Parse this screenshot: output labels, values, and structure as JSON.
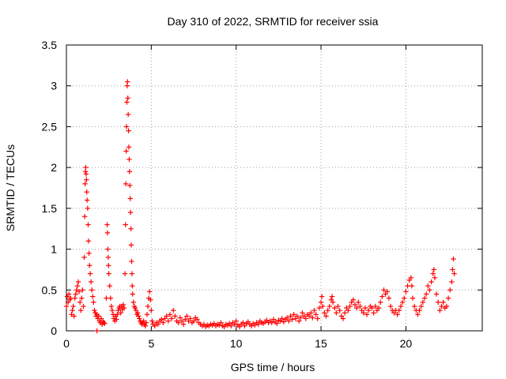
{
  "chart_data": {
    "type": "scatter",
    "title": "Day 310 of 2022, SRMTID for receiver ssia",
    "xlabel": "GPS time / hours",
    "ylabel": "SRMTID / TECUs",
    "xlim": [
      0,
      24.5
    ],
    "ylim": [
      0,
      3.5
    ],
    "x_ticks": [
      0,
      5,
      10,
      15,
      20
    ],
    "x_tick_labels": [
      "0",
      "5",
      "10",
      "15",
      "20"
    ],
    "y_ticks": [
      0,
      0.5,
      1,
      1.5,
      2,
      2.5,
      3,
      3.5
    ],
    "y_tick_labels": [
      "0",
      "0.5",
      "1",
      "1.5",
      "2",
      "2.5",
      "3",
      "3.5"
    ],
    "grid": true,
    "marker": "+",
    "series": [
      {
        "name": "SRMTID",
        "color": "#ff0000",
        "points": [
          [
            0.0,
            0.3
          ],
          [
            0.05,
            0.42
          ],
          [
            0.1,
            0.35
          ],
          [
            0.15,
            0.45
          ],
          [
            0.2,
            0.38
          ],
          [
            0.25,
            0.4
          ],
          [
            0.3,
            0.2
          ],
          [
            0.35,
            0.25
          ],
          [
            0.4,
            0.3
          ],
          [
            0.45,
            0.18
          ],
          [
            0.5,
            0.4
          ],
          [
            0.55,
            0.45
          ],
          [
            0.6,
            0.5
          ],
          [
            0.65,
            0.55
          ],
          [
            0.7,
            0.6
          ],
          [
            0.75,
            0.48
          ],
          [
            0.8,
            0.35
          ],
          [
            0.85,
            0.25
          ],
          [
            0.9,
            0.4
          ],
          [
            0.95,
            0.5
          ],
          [
            1.0,
            0.3
          ],
          [
            1.05,
            0.9
          ],
          [
            1.08,
            1.4
          ],
          [
            1.1,
            1.8
          ],
          [
            1.12,
            1.95
          ],
          [
            1.14,
            2.0
          ],
          [
            1.16,
            1.92
          ],
          [
            1.18,
            1.85
          ],
          [
            1.2,
            1.7
          ],
          [
            1.22,
            1.6
          ],
          [
            1.25,
            1.5
          ],
          [
            1.28,
            1.3
          ],
          [
            1.3,
            1.1
          ],
          [
            1.33,
            0.95
          ],
          [
            1.36,
            0.8
          ],
          [
            1.4,
            0.7
          ],
          [
            1.45,
            0.6
          ],
          [
            1.5,
            0.5
          ],
          [
            1.55,
            0.42
          ],
          [
            1.6,
            0.35
          ],
          [
            1.65,
            0.25
          ],
          [
            1.7,
            0.22
          ],
          [
            1.75,
            0.18
          ],
          [
            1.8,
            0.2
          ],
          [
            1.85,
            0.15
          ],
          [
            1.9,
            0.18
          ],
          [
            1.95,
            0.12
          ],
          [
            2.0,
            0.1
          ],
          [
            2.05,
            0.15
          ],
          [
            2.1,
            0.08
          ],
          [
            2.15,
            0.12
          ],
          [
            2.2,
            0.1
          ],
          [
            2.25,
            0.09
          ],
          [
            1.8,
            0.0
          ],
          [
            2.35,
            0.4
          ],
          [
            2.4,
            1.3
          ],
          [
            2.42,
            1.2
          ],
          [
            2.44,
            1.0
          ],
          [
            2.46,
            0.9
          ],
          [
            2.48,
            0.8
          ],
          [
            2.5,
            0.7
          ],
          [
            2.55,
            0.55
          ],
          [
            2.6,
            0.4
          ],
          [
            2.65,
            0.3
          ],
          [
            2.7,
            0.25
          ],
          [
            2.75,
            0.2
          ],
          [
            2.8,
            0.15
          ],
          [
            2.85,
            0.12
          ],
          [
            2.9,
            0.18
          ],
          [
            2.95,
            0.14
          ],
          [
            3.0,
            0.2
          ],
          [
            3.05,
            0.25
          ],
          [
            3.1,
            0.28
          ],
          [
            3.15,
            0.3
          ],
          [
            3.2,
            0.22
          ],
          [
            3.25,
            0.3
          ],
          [
            3.3,
            0.26
          ],
          [
            3.35,
            0.32
          ],
          [
            3.4,
            0.28
          ],
          [
            3.45,
            0.7
          ],
          [
            3.48,
            1.3
          ],
          [
            3.5,
            1.8
          ],
          [
            3.52,
            2.2
          ],
          [
            3.54,
            2.5
          ],
          [
            3.56,
            2.8
          ],
          [
            3.58,
            3.0
          ],
          [
            3.6,
            3.05
          ],
          [
            3.62,
            2.85
          ],
          [
            3.64,
            2.65
          ],
          [
            3.66,
            2.45
          ],
          [
            3.68,
            2.25
          ],
          [
            3.7,
            2.1
          ],
          [
            3.72,
            1.95
          ],
          [
            3.74,
            1.78
          ],
          [
            3.76,
            1.62
          ],
          [
            3.78,
            1.45
          ],
          [
            3.8,
            1.25
          ],
          [
            3.82,
            1.05
          ],
          [
            3.84,
            0.85
          ],
          [
            3.86,
            0.7
          ],
          [
            3.88,
            0.55
          ],
          [
            3.9,
            0.45
          ],
          [
            3.95,
            0.35
          ],
          [
            4.0,
            0.3
          ],
          [
            4.05,
            0.28
          ],
          [
            4.1,
            0.25
          ],
          [
            4.15,
            0.2
          ],
          [
            4.2,
            0.22
          ],
          [
            4.25,
            0.18
          ],
          [
            4.3,
            0.15
          ],
          [
            4.35,
            0.12
          ],
          [
            4.4,
            0.1
          ],
          [
            4.45,
            0.08
          ],
          [
            4.5,
            0.1
          ],
          [
            4.55,
            0.12
          ],
          [
            4.6,
            0.08
          ],
          [
            4.65,
            0.06
          ],
          [
            4.7,
            0.1
          ],
          [
            4.75,
            0.2
          ],
          [
            4.8,
            0.3
          ],
          [
            4.85,
            0.4
          ],
          [
            4.9,
            0.48
          ],
          [
            4.95,
            0.38
          ],
          [
            5.0,
            0.25
          ],
          [
            5.05,
            0.12
          ],
          [
            5.1,
            0.08
          ],
          [
            5.2,
            0.06
          ],
          [
            5.3,
            0.1
          ],
          [
            5.4,
            0.08
          ],
          [
            5.5,
            0.12
          ],
          [
            5.6,
            0.14
          ],
          [
            5.7,
            0.1
          ],
          [
            5.8,
            0.15
          ],
          [
            5.9,
            0.18
          ],
          [
            6.0,
            0.12
          ],
          [
            6.1,
            0.2
          ],
          [
            6.2,
            0.15
          ],
          [
            6.3,
            0.25
          ],
          [
            6.4,
            0.18
          ],
          [
            6.5,
            0.12
          ],
          [
            6.6,
            0.1
          ],
          [
            6.7,
            0.16
          ],
          [
            6.8,
            0.12
          ],
          [
            6.9,
            0.08
          ],
          [
            7.0,
            0.14
          ],
          [
            7.1,
            0.18
          ],
          [
            7.2,
            0.12
          ],
          [
            7.3,
            0.15
          ],
          [
            7.4,
            0.1
          ],
          [
            7.5,
            0.12
          ],
          [
            7.6,
            0.16
          ],
          [
            7.7,
            0.14
          ],
          [
            7.8,
            0.1
          ],
          [
            7.9,
            0.08
          ],
          [
            8.0,
            0.06
          ],
          [
            8.1,
            0.08
          ],
          [
            8.2,
            0.05
          ],
          [
            8.3,
            0.07
          ],
          [
            8.4,
            0.06
          ],
          [
            8.5,
            0.08
          ],
          [
            8.6,
            0.07
          ],
          [
            8.7,
            0.09
          ],
          [
            8.8,
            0.06
          ],
          [
            8.9,
            0.08
          ],
          [
            9.0,
            0.07
          ],
          [
            9.1,
            0.1
          ],
          [
            9.2,
            0.06
          ],
          [
            9.3,
            0.05
          ],
          [
            9.4,
            0.08
          ],
          [
            9.5,
            0.07
          ],
          [
            9.6,
            0.09
          ],
          [
            9.7,
            0.06
          ],
          [
            9.8,
            0.1
          ],
          [
            9.9,
            0.08
          ],
          [
            10.0,
            0.12
          ],
          [
            10.1,
            0.07
          ],
          [
            10.2,
            0.05
          ],
          [
            10.3,
            0.08
          ],
          [
            10.4,
            0.1
          ],
          [
            10.5,
            0.06
          ],
          [
            10.6,
            0.09
          ],
          [
            10.7,
            0.11
          ],
          [
            10.8,
            0.08
          ],
          [
            10.9,
            0.06
          ],
          [
            11.0,
            0.09
          ],
          [
            11.1,
            0.07
          ],
          [
            11.2,
            0.1
          ],
          [
            11.3,
            0.08
          ],
          [
            11.4,
            0.12
          ],
          [
            11.5,
            0.1
          ],
          [
            11.6,
            0.09
          ],
          [
            11.7,
            0.11
          ],
          [
            11.8,
            0.13
          ],
          [
            11.9,
            0.1
          ],
          [
            12.0,
            0.12
          ],
          [
            12.1,
            0.1
          ],
          [
            12.2,
            0.14
          ],
          [
            12.3,
            0.11
          ],
          [
            12.4,
            0.09
          ],
          [
            12.5,
            0.13
          ],
          [
            12.6,
            0.12
          ],
          [
            12.7,
            0.15
          ],
          [
            12.8,
            0.11
          ],
          [
            12.9,
            0.14
          ],
          [
            13.0,
            0.16
          ],
          [
            13.1,
            0.12
          ],
          [
            13.2,
            0.18
          ],
          [
            13.3,
            0.14
          ],
          [
            13.4,
            0.2
          ],
          [
            13.5,
            0.15
          ],
          [
            13.6,
            0.18
          ],
          [
            13.7,
            0.12
          ],
          [
            13.8,
            0.16
          ],
          [
            13.9,
            0.22
          ],
          [
            14.0,
            0.18
          ],
          [
            14.1,
            0.15
          ],
          [
            14.2,
            0.2
          ],
          [
            14.3,
            0.18
          ],
          [
            14.4,
            0.22
          ],
          [
            14.5,
            0.16
          ],
          [
            14.6,
            0.25
          ],
          [
            14.7,
            0.2
          ],
          [
            14.8,
            0.15
          ],
          [
            14.9,
            0.28
          ],
          [
            15.0,
            0.35
          ],
          [
            15.05,
            0.42
          ],
          [
            15.1,
            0.3
          ],
          [
            15.2,
            0.22
          ],
          [
            15.3,
            0.18
          ],
          [
            15.4,
            0.25
          ],
          [
            15.5,
            0.3
          ],
          [
            15.6,
            0.38
          ],
          [
            15.65,
            0.42
          ],
          [
            15.7,
            0.35
          ],
          [
            15.8,
            0.28
          ],
          [
            15.9,
            0.22
          ],
          [
            16.0,
            0.3
          ],
          [
            16.1,
            0.25
          ],
          [
            16.2,
            0.18
          ],
          [
            16.3,
            0.15
          ],
          [
            16.4,
            0.22
          ],
          [
            16.5,
            0.28
          ],
          [
            16.6,
            0.25
          ],
          [
            16.7,
            0.3
          ],
          [
            16.8,
            0.35
          ],
          [
            16.9,
            0.38
          ],
          [
            17.0,
            0.32
          ],
          [
            17.1,
            0.28
          ],
          [
            17.2,
            0.35
          ],
          [
            17.3,
            0.3
          ],
          [
            17.4,
            0.25
          ],
          [
            17.5,
            0.22
          ],
          [
            17.6,
            0.28
          ],
          [
            17.7,
            0.2
          ],
          [
            17.8,
            0.25
          ],
          [
            17.9,
            0.3
          ],
          [
            18.0,
            0.28
          ],
          [
            18.1,
            0.22
          ],
          [
            18.2,
            0.3
          ],
          [
            18.3,
            0.25
          ],
          [
            18.4,
            0.28
          ],
          [
            18.5,
            0.35
          ],
          [
            18.6,
            0.42
          ],
          [
            18.7,
            0.5
          ],
          [
            18.8,
            0.45
          ],
          [
            18.9,
            0.48
          ],
          [
            19.0,
            0.4
          ],
          [
            19.1,
            0.3
          ],
          [
            19.2,
            0.25
          ],
          [
            19.3,
            0.22
          ],
          [
            19.4,
            0.25
          ],
          [
            19.5,
            0.2
          ],
          [
            19.6,
            0.25
          ],
          [
            19.7,
            0.3
          ],
          [
            19.8,
            0.35
          ],
          [
            19.9,
            0.4
          ],
          [
            20.0,
            0.48
          ],
          [
            20.1,
            0.55
          ],
          [
            20.2,
            0.62
          ],
          [
            20.3,
            0.65
          ],
          [
            20.35,
            0.55
          ],
          [
            20.4,
            0.4
          ],
          [
            20.5,
            0.3
          ],
          [
            20.6,
            0.25
          ],
          [
            20.7,
            0.2
          ],
          [
            20.8,
            0.25
          ],
          [
            20.9,
            0.3
          ],
          [
            21.0,
            0.35
          ],
          [
            21.1,
            0.4
          ],
          [
            21.2,
            0.45
          ],
          [
            21.3,
            0.55
          ],
          [
            21.4,
            0.5
          ],
          [
            21.5,
            0.6
          ],
          [
            21.6,
            0.7
          ],
          [
            21.65,
            0.75
          ],
          [
            21.7,
            0.65
          ],
          [
            21.8,
            0.45
          ],
          [
            21.9,
            0.35
          ],
          [
            22.0,
            0.25
          ],
          [
            22.1,
            0.3
          ],
          [
            22.2,
            0.35
          ],
          [
            22.3,
            0.28
          ],
          [
            22.4,
            0.3
          ],
          [
            22.5,
            0.4
          ],
          [
            22.6,
            0.5
          ],
          [
            22.7,
            0.6
          ],
          [
            22.75,
            0.75
          ],
          [
            22.8,
            0.88
          ],
          [
            22.85,
            0.7
          ]
        ]
      }
    ]
  }
}
